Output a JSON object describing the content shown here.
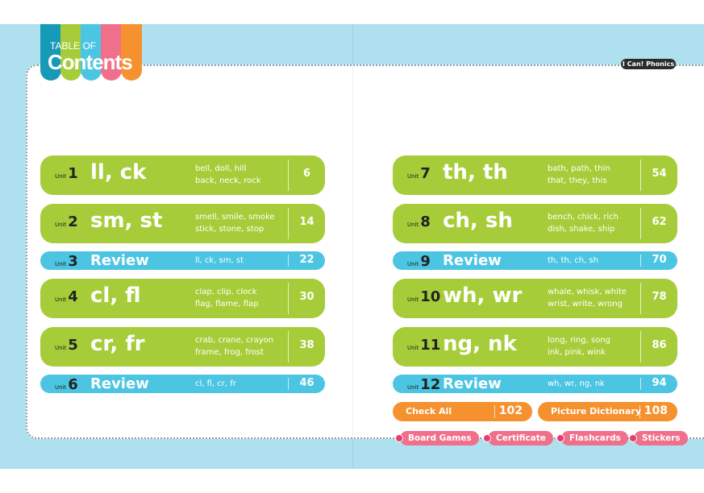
{
  "header": {
    "title_small": "TABLE OF",
    "title_big": "Contents",
    "brand": "I Can! Phonics"
  },
  "unit_label": "Unit",
  "units": [
    {
      "num": "1",
      "title": "ll, ck",
      "words1": "bell, doll, hill",
      "words2": "back, neck, rock",
      "page": "6",
      "type": "lesson"
    },
    {
      "num": "2",
      "title": "sm, st",
      "words1": "smell, smile, smoke",
      "words2": "stick, stone, stop",
      "page": "14",
      "type": "lesson"
    },
    {
      "num": "3",
      "title": "Review",
      "words1": "ll, ck, sm, st",
      "words2": "",
      "page": "22",
      "type": "review"
    },
    {
      "num": "4",
      "title": "cl, fl",
      "words1": "clap, clip, clock",
      "words2": "flag, flame, flap",
      "page": "30",
      "type": "lesson"
    },
    {
      "num": "5",
      "title": "cr, fr",
      "words1": "crab, crane, crayon",
      "words2": "frame, frog, frost",
      "page": "38",
      "type": "lesson"
    },
    {
      "num": "6",
      "title": "Review",
      "words1": "cl, fl, cr, fr",
      "words2": "",
      "page": "46",
      "type": "review"
    },
    {
      "num": "7",
      "title": "th, th",
      "words1": "bath, path, thin",
      "words2": "that, they, this",
      "page": "54",
      "type": "lesson"
    },
    {
      "num": "8",
      "title": "ch, sh",
      "words1": "bench, chick, rich",
      "words2": "dish, shake, ship",
      "page": "62",
      "type": "lesson"
    },
    {
      "num": "9",
      "title": "Review",
      "words1": "th, th, ch, sh",
      "words2": "",
      "page": "70",
      "type": "review"
    },
    {
      "num": "10",
      "title": "wh, wr",
      "words1": "whale, whisk, white",
      "words2": "wrist, write, wrong",
      "page": "78",
      "type": "lesson"
    },
    {
      "num": "11",
      "title": "ng, nk",
      "words1": "long, ring, song",
      "words2": "ink, pink, wink",
      "page": "86",
      "type": "lesson"
    },
    {
      "num": "12",
      "title": "Review",
      "words1": "wh, wr, ng, nk",
      "words2": "",
      "page": "94",
      "type": "review"
    }
  ],
  "extras": [
    {
      "label": "Check All",
      "page": "102"
    },
    {
      "label": "Picture Dictionary",
      "page": "108"
    }
  ],
  "appendix": [
    "Board Games",
    "Certificate",
    "Flashcards",
    "Stickers"
  ],
  "colors": {
    "green": "#a6cd39",
    "blue": "#4cc5e3",
    "orange": "#f5922f",
    "pink": "#f06f8a"
  }
}
